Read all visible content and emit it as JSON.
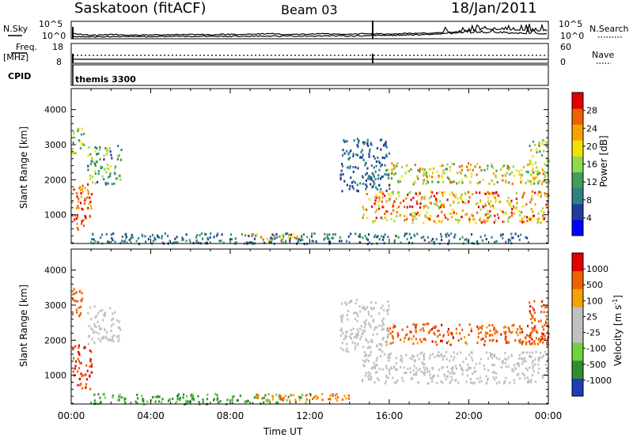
{
  "header": {
    "station": "Saskatoon (fitACF)",
    "beam": "Beam 03",
    "date": "18/Jan/2011"
  },
  "noise_panel": {
    "left_label": "N.Sky",
    "left_ticks": [
      "10^5",
      "10^0"
    ],
    "right_ticks": [
      "10^5",
      "10^0"
    ],
    "right_label": "N.Search"
  },
  "freq_panel": {
    "left_label_1": "Freq.",
    "left_label_2": "[MHz]",
    "left_ticks": [
      "18",
      "8"
    ],
    "right_ticks": [
      "60",
      "0"
    ],
    "right_label": "Nave"
  },
  "cpid_panel": {
    "left_label": "CPID",
    "program": "themis 3300"
  },
  "chart_data": [
    {
      "type": "heatmap",
      "ylabel": "Slant Range [km]",
      "ylim": [
        180,
        4600
      ],
      "yticks": [
        "1000",
        "2000",
        "3000",
        "4000"
      ],
      "xlim": [
        0,
        24
      ],
      "xticks": [
        "00:00",
        "04:00",
        "08:00",
        "12:00",
        "16:00",
        "20:00",
        "00:00"
      ],
      "xlabel": "Time UT",
      "colorbar": {
        "label": "Power [dB]",
        "ticks": [
          "28",
          "24",
          "20",
          "16",
          "12",
          "8",
          "4"
        ],
        "range": [
          0,
          30
        ],
        "colors": [
          "#0000ff",
          "#1e3c9c",
          "#2f7f86",
          "#3f9e5a",
          "#8fd94f",
          "#f1e100",
          "#f5a300",
          "#ee6000",
          "#e30000"
        ]
      },
      "echo_regions": [
        {
          "t": [
            0.0,
            1.0
          ],
          "range_km": [
            600,
            1900
          ],
          "power_db": [
            20,
            30
          ]
        },
        {
          "t": [
            0.0,
            0.6
          ],
          "range_km": [
            2700,
            3500
          ],
          "power_db": [
            10,
            22
          ]
        },
        {
          "t": [
            0.8,
            2.5
          ],
          "range_km": [
            1900,
            3000
          ],
          "power_db": [
            6,
            18
          ]
        },
        {
          "t": [
            1.0,
            23.0
          ],
          "range_km": [
            200,
            500
          ],
          "power_db": [
            4,
            12
          ]
        },
        {
          "t": [
            9.0,
            11.5
          ],
          "range_km": [
            300,
            500
          ],
          "power_db": [
            16,
            26
          ]
        },
        {
          "t": [
            14.6,
            24.0
          ],
          "range_km": [
            800,
            1700
          ],
          "power_db": [
            14,
            30
          ]
        },
        {
          "t": [
            15.8,
            24.0
          ],
          "range_km": [
            1900,
            2500
          ],
          "power_db": [
            10,
            26
          ]
        },
        {
          "t": [
            13.5,
            16.0
          ],
          "range_km": [
            1700,
            3200
          ],
          "power_db": [
            4,
            10
          ]
        },
        {
          "t": [
            23.0,
            24.0
          ],
          "range_km": [
            1900,
            3200
          ],
          "power_db": [
            12,
            22
          ]
        }
      ]
    },
    {
      "type": "heatmap",
      "ylabel": "Slant Range [km]",
      "ylim": [
        180,
        4600
      ],
      "yticks": [
        "1000",
        "2000",
        "3000",
        "4000"
      ],
      "xlim": [
        0,
        24
      ],
      "xticks": [
        "00:00",
        "04:00",
        "08:00",
        "12:00",
        "16:00",
        "20:00",
        "00:00"
      ],
      "xlabel": "Time UT",
      "colorbar": {
        "label": "Velocity [m s",
        "label_sup": "-1",
        "label_end": "]",
        "ticks": [
          "1000",
          "500",
          "100",
          "25",
          "-25",
          "-100",
          "-500",
          "-1000"
        ],
        "colors": [
          "#1e3cb4",
          "#2f8f2f",
          "#6fd040",
          "#c0c0c0",
          "#c0c0c0",
          "#f5a300",
          "#ee6000",
          "#e30000"
        ],
        "ground_scatter_color": "#c0c0c0"
      },
      "echo_regions": [
        {
          "t": [
            0.0,
            1.0
          ],
          "range_km": [
            600,
            1900
          ],
          "velocity": [
            -800,
            -200
          ]
        },
        {
          "t": [
            0.0,
            0.6
          ],
          "range_km": [
            2700,
            3500
          ],
          "velocity": [
            -500,
            -100
          ]
        },
        {
          "t": [
            0.8,
            2.5
          ],
          "range_km": [
            1900,
            3000
          ],
          "velocity": [
            -25,
            25
          ]
        },
        {
          "t": [
            1.0,
            12.0
          ],
          "range_km": [
            200,
            500
          ],
          "velocity": [
            25,
            300
          ]
        },
        {
          "t": [
            9.0,
            14.0
          ],
          "range_km": [
            300,
            500
          ],
          "velocity": [
            -200,
            -50
          ]
        },
        {
          "t": [
            14.6,
            24.0
          ],
          "range_km": [
            800,
            1700
          ],
          "velocity": [
            -25,
            25
          ]
        },
        {
          "t": [
            15.8,
            24.0
          ],
          "range_km": [
            1900,
            2500
          ],
          "velocity": [
            -600,
            -50
          ]
        },
        {
          "t": [
            13.5,
            16.0
          ],
          "range_km": [
            1700,
            3200
          ],
          "velocity": [
            -25,
            25
          ]
        },
        {
          "t": [
            23.0,
            24.0
          ],
          "range_km": [
            1900,
            3200
          ],
          "velocity": [
            -600,
            -100
          ]
        }
      ]
    }
  ],
  "noise_series": {
    "description_levels": "normalized log-noise traces",
    "sky": [
      0.28,
      0.2,
      0.25,
      0.2,
      0.22,
      0.24,
      0.25,
      0.23,
      0.26,
      0.25,
      0.3,
      0.24,
      0.27,
      0.28,
      0.25,
      0.3,
      0.27,
      0.3,
      0.32,
      0.35,
      0.45,
      0.55,
      0.52,
      0.48,
      0.45
    ],
    "search": [
      0.12,
      0.1,
      0.12,
      0.13,
      0.12,
      0.14,
      0.13,
      0.15,
      0.14,
      0.16,
      0.15,
      0.15,
      0.16,
      0.17,
      0.16,
      0.18,
      0.2,
      0.22,
      0.25,
      0.3,
      0.35,
      0.35,
      0.32,
      0.3,
      0.28
    ]
  }
}
